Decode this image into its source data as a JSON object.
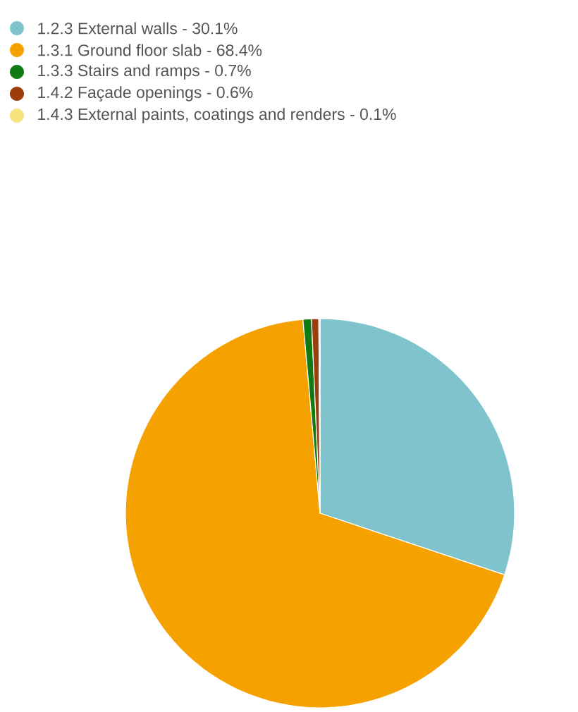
{
  "chart_data": {
    "type": "pie",
    "categories": [
      "1.2.3 External walls - 30.1%",
      "1.3.1 Ground floor slab - 68.4%",
      "1.3.3 Stairs and ramps - 0.7%",
      "1.4.2 Façade openings - 0.6%",
      "1.4.3 External paints, coatings and renders - 0.1%"
    ],
    "values": [
      30.1,
      68.4,
      0.7,
      0.6,
      0.1
    ],
    "colors": [
      "#7fc3cc",
      "#f5a100",
      "#127a12",
      "#9c3d0a",
      "#f5e27a"
    ],
    "legend": "top left"
  }
}
